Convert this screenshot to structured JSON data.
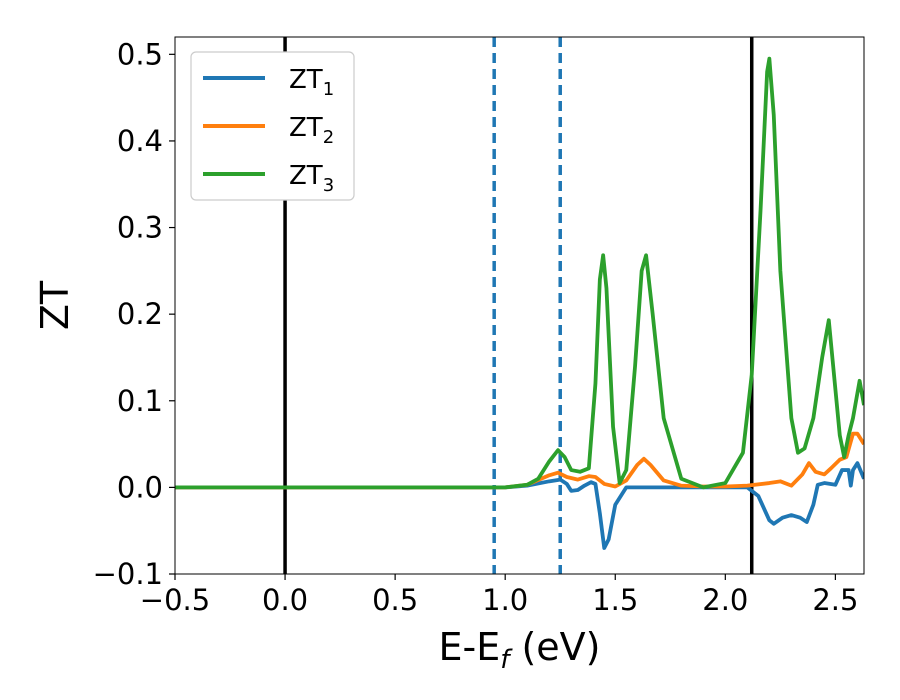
{
  "chart_data": {
    "type": "line",
    "xlabel": {
      "main": "E-E",
      "sub": "f",
      "unit": " (eV)"
    },
    "ylabel": "ZT",
    "xlim": [
      -0.5,
      2.63
    ],
    "ylim": [
      -0.1,
      0.52
    ],
    "xticks": [
      -0.5,
      0.0,
      0.5,
      1.0,
      1.5,
      2.0,
      2.5
    ],
    "xtick_labels": [
      "−0.5",
      "0.0",
      "0.5",
      "1.0",
      "1.5",
      "2.0",
      "2.5"
    ],
    "yticks": [
      -0.1,
      0.0,
      0.1,
      0.2,
      0.3,
      0.4,
      0.5
    ],
    "ytick_labels": [
      "−0.1",
      "0.0",
      "0.1",
      "0.2",
      "0.3",
      "0.4",
      "0.5"
    ],
    "grid": false,
    "legend": "top-left",
    "vertical_lines": [
      {
        "x": 0.0,
        "style": "solid",
        "color": "#000000"
      },
      {
        "x": 2.12,
        "style": "solid",
        "color": "#000000"
      },
      {
        "x": 0.95,
        "style": "dashed",
        "color": "#1f77b4"
      },
      {
        "x": 1.25,
        "style": "dashed",
        "color": "#1f77b4"
      }
    ],
    "series": [
      {
        "name": "ZT",
        "sub": "1",
        "color": "#1f77b4",
        "points": [
          [
            -0.5,
            0
          ],
          [
            1.0,
            0
          ],
          [
            1.1,
            0.002
          ],
          [
            1.2,
            0.007
          ],
          [
            1.25,
            0.009
          ],
          [
            1.28,
            0.004
          ],
          [
            1.3,
            -0.004
          ],
          [
            1.33,
            -0.003
          ],
          [
            1.36,
            0.002
          ],
          [
            1.39,
            0.006
          ],
          [
            1.41,
            0.004
          ],
          [
            1.43,
            -0.03
          ],
          [
            1.45,
            -0.07
          ],
          [
            1.47,
            -0.06
          ],
          [
            1.5,
            -0.02
          ],
          [
            1.55,
            0.0
          ],
          [
            1.6,
            0.0
          ],
          [
            2.1,
            0.0
          ],
          [
            2.15,
            -0.01
          ],
          [
            2.2,
            -0.038
          ],
          [
            2.22,
            -0.042
          ],
          [
            2.26,
            -0.035
          ],
          [
            2.3,
            -0.032
          ],
          [
            2.34,
            -0.035
          ],
          [
            2.37,
            -0.04
          ],
          [
            2.4,
            -0.02
          ],
          [
            2.42,
            0.003
          ],
          [
            2.45,
            0.005
          ],
          [
            2.5,
            0.003
          ],
          [
            2.53,
            0.02
          ],
          [
            2.56,
            0.02
          ],
          [
            2.57,
            0.002
          ],
          [
            2.58,
            0.02
          ],
          [
            2.6,
            0.028
          ],
          [
            2.63,
            0.01
          ]
        ]
      },
      {
        "name": "ZT",
        "sub": "2",
        "color": "#ff7f0e",
        "points": [
          [
            -0.5,
            0
          ],
          [
            1.0,
            0
          ],
          [
            1.1,
            0.003
          ],
          [
            1.2,
            0.014
          ],
          [
            1.24,
            0.017
          ],
          [
            1.28,
            0.012
          ],
          [
            1.33,
            0.009
          ],
          [
            1.38,
            0.013
          ],
          [
            1.41,
            0.012
          ],
          [
            1.45,
            0.004
          ],
          [
            1.5,
            0.001
          ],
          [
            1.55,
            0.008
          ],
          [
            1.6,
            0.026
          ],
          [
            1.63,
            0.033
          ],
          [
            1.66,
            0.026
          ],
          [
            1.72,
            0.008
          ],
          [
            1.8,
            0.002
          ],
          [
            1.9,
            0.001
          ],
          [
            2.0,
            0.001
          ],
          [
            2.1,
            0.002
          ],
          [
            2.2,
            0.005
          ],
          [
            2.25,
            0.007
          ],
          [
            2.3,
            0.002
          ],
          [
            2.35,
            0.015
          ],
          [
            2.38,
            0.028
          ],
          [
            2.41,
            0.018
          ],
          [
            2.45,
            0.015
          ],
          [
            2.48,
            0.022
          ],
          [
            2.52,
            0.032
          ],
          [
            2.55,
            0.035
          ],
          [
            2.58,
            0.062
          ],
          [
            2.6,
            0.062
          ],
          [
            2.63,
            0.05
          ]
        ]
      },
      {
        "name": "ZT",
        "sub": "3",
        "color": "#2ca02c",
        "points": [
          [
            -0.5,
            0
          ],
          [
            1.0,
            0
          ],
          [
            1.1,
            0.003
          ],
          [
            1.15,
            0.01
          ],
          [
            1.2,
            0.03
          ],
          [
            1.24,
            0.043
          ],
          [
            1.27,
            0.035
          ],
          [
            1.3,
            0.02
          ],
          [
            1.34,
            0.018
          ],
          [
            1.38,
            0.022
          ],
          [
            1.41,
            0.12
          ],
          [
            1.43,
            0.24
          ],
          [
            1.445,
            0.268
          ],
          [
            1.46,
            0.23
          ],
          [
            1.49,
            0.07
          ],
          [
            1.52,
            0.005
          ],
          [
            1.55,
            0.02
          ],
          [
            1.59,
            0.14
          ],
          [
            1.62,
            0.25
          ],
          [
            1.64,
            0.268
          ],
          [
            1.67,
            0.2
          ],
          [
            1.72,
            0.08
          ],
          [
            1.8,
            0.01
          ],
          [
            1.9,
            0.0
          ],
          [
            2.0,
            0.005
          ],
          [
            2.08,
            0.04
          ],
          [
            2.12,
            0.13
          ],
          [
            2.16,
            0.32
          ],
          [
            2.19,
            0.48
          ],
          [
            2.2,
            0.495
          ],
          [
            2.22,
            0.43
          ],
          [
            2.25,
            0.25
          ],
          [
            2.3,
            0.08
          ],
          [
            2.33,
            0.04
          ],
          [
            2.36,
            0.045
          ],
          [
            2.4,
            0.08
          ],
          [
            2.44,
            0.15
          ],
          [
            2.47,
            0.193
          ],
          [
            2.49,
            0.14
          ],
          [
            2.52,
            0.06
          ],
          [
            2.54,
            0.035
          ],
          [
            2.56,
            0.06
          ],
          [
            2.58,
            0.08
          ],
          [
            2.61,
            0.123
          ],
          [
            2.63,
            0.095
          ]
        ]
      }
    ]
  }
}
